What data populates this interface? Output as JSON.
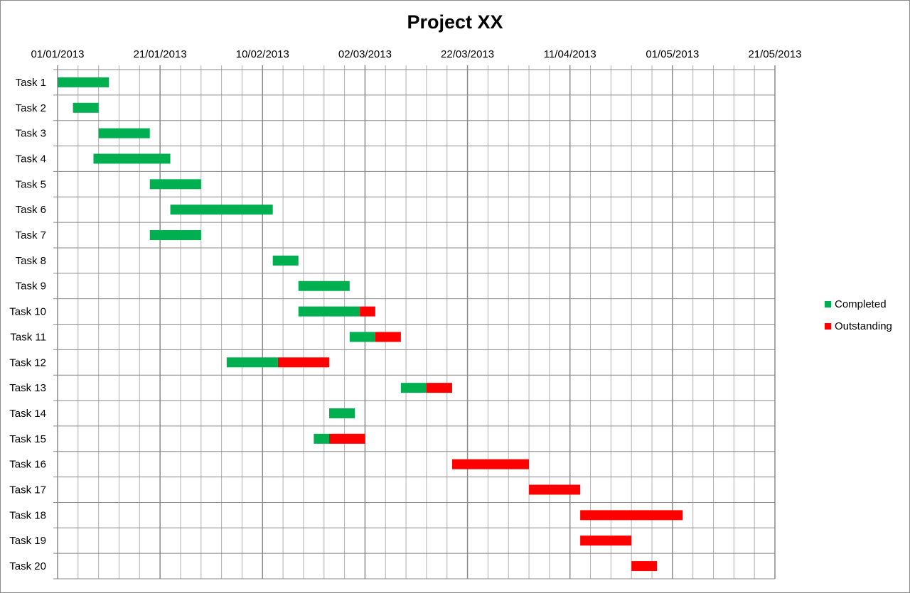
{
  "chart_data": {
    "type": "gantt",
    "title": "Project XX",
    "x_axis": {
      "type": "date",
      "range": [
        "01/01/2013",
        "21/05/2013"
      ],
      "tick_labels": [
        "01/01/2013",
        "21/01/2013",
        "10/02/2013",
        "02/03/2013",
        "22/03/2013",
        "11/04/2013",
        "01/05/2013",
        "21/05/2013"
      ],
      "major_step_days": 20,
      "minor_step_days": 4,
      "position": "top"
    },
    "grid": true,
    "legend": {
      "placement": "right",
      "entries": [
        "Completed",
        "Outstanding"
      ]
    },
    "colors": {
      "Completed": "#00b050",
      "Outstanding": "#ff0000"
    },
    "tasks": [
      {
        "name": "Task 1",
        "start": "01/01/2013",
        "completed_days": 10,
        "outstanding_days": 0
      },
      {
        "name": "Task 2",
        "start": "04/01/2013",
        "completed_days": 5,
        "outstanding_days": 0
      },
      {
        "name": "Task 3",
        "start": "09/01/2013",
        "completed_days": 10,
        "outstanding_days": 0
      },
      {
        "name": "Task 4",
        "start": "08/01/2013",
        "completed_days": 15,
        "outstanding_days": 0
      },
      {
        "name": "Task 5",
        "start": "19/01/2013",
        "completed_days": 10,
        "outstanding_days": 0
      },
      {
        "name": "Task 6",
        "start": "23/01/2013",
        "completed_days": 20,
        "outstanding_days": 0
      },
      {
        "name": "Task 7",
        "start": "19/01/2013",
        "completed_days": 10,
        "outstanding_days": 0
      },
      {
        "name": "Task 8",
        "start": "12/02/2013",
        "completed_days": 5,
        "outstanding_days": 0
      },
      {
        "name": "Task 9",
        "start": "17/02/2013",
        "completed_days": 10,
        "outstanding_days": 0
      },
      {
        "name": "Task 10",
        "start": "17/02/2013",
        "completed_days": 12,
        "outstanding_days": 3
      },
      {
        "name": "Task 11",
        "start": "27/02/2013",
        "completed_days": 5,
        "outstanding_days": 5
      },
      {
        "name": "Task 12",
        "start": "03/02/2013",
        "completed_days": 10,
        "outstanding_days": 10
      },
      {
        "name": "Task 13",
        "start": "09/03/2013",
        "completed_days": 5,
        "outstanding_days": 5
      },
      {
        "name": "Task 14",
        "start": "23/02/2013",
        "completed_days": 5,
        "outstanding_days": 0
      },
      {
        "name": "Task 15",
        "start": "20/02/2013",
        "completed_days": 3,
        "outstanding_days": 7
      },
      {
        "name": "Task 16",
        "start": "19/03/2013",
        "completed_days": 0,
        "outstanding_days": 15
      },
      {
        "name": "Task 17",
        "start": "03/04/2013",
        "completed_days": 0,
        "outstanding_days": 10
      },
      {
        "name": "Task 18",
        "start": "13/04/2013",
        "completed_days": 0,
        "outstanding_days": 20
      },
      {
        "name": "Task 19",
        "start": "13/04/2013",
        "completed_days": 0,
        "outstanding_days": 10
      },
      {
        "name": "Task 20",
        "start": "23/04/2013",
        "completed_days": 0,
        "outstanding_days": 5
      }
    ]
  }
}
